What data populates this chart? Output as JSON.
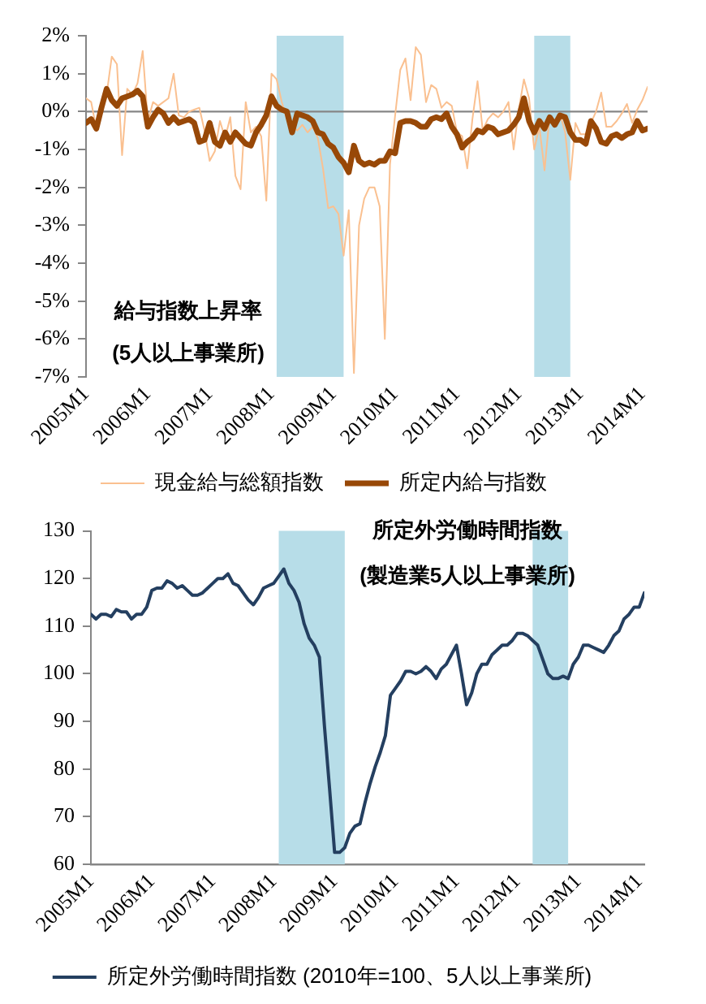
{
  "chart_data": [
    {
      "type": "line",
      "title": "給与指数上昇率",
      "subtitle": "(5人以上事業所)",
      "x": [
        "2005-01",
        "2005-02",
        "2005-03",
        "2005-04",
        "2005-05",
        "2005-06",
        "2005-07",
        "2005-08",
        "2005-09",
        "2005-10",
        "2005-11",
        "2005-12",
        "2006-01",
        "2006-02",
        "2006-03",
        "2006-04",
        "2006-05",
        "2006-06",
        "2006-07",
        "2006-08",
        "2006-09",
        "2006-10",
        "2006-11",
        "2006-12",
        "2007-01",
        "2007-02",
        "2007-03",
        "2007-04",
        "2007-05",
        "2007-06",
        "2007-07",
        "2007-08",
        "2007-09",
        "2007-10",
        "2007-11",
        "2007-12",
        "2008-01",
        "2008-02",
        "2008-03",
        "2008-04",
        "2008-05",
        "2008-06",
        "2008-07",
        "2008-08",
        "2008-09",
        "2008-10",
        "2008-11",
        "2008-12",
        "2009-01",
        "2009-02",
        "2009-03",
        "2009-04",
        "2009-05",
        "2009-06",
        "2009-07",
        "2009-08",
        "2009-09",
        "2009-10",
        "2009-11",
        "2009-12",
        "2010-01",
        "2010-02",
        "2010-03",
        "2010-04",
        "2010-05",
        "2010-06",
        "2010-07",
        "2010-08",
        "2010-09",
        "2010-10",
        "2010-11",
        "2010-12",
        "2011-01",
        "2011-02",
        "2011-03",
        "2011-04",
        "2011-05",
        "2011-06",
        "2011-07",
        "2011-08",
        "2011-09",
        "2011-10",
        "2011-11",
        "2011-12",
        "2012-01",
        "2012-02",
        "2012-03",
        "2012-04",
        "2012-05",
        "2012-06",
        "2012-07",
        "2012-08",
        "2012-09",
        "2012-10",
        "2012-11",
        "2012-12",
        "2013-01",
        "2013-02",
        "2013-03",
        "2013-04",
        "2013-05",
        "2013-06",
        "2013-07",
        "2013-08",
        "2013-09",
        "2013-10",
        "2013-11",
        "2013-12",
        "2014-01",
        "2014-02"
      ],
      "xlim": [
        "2005-01",
        "2014-02"
      ],
      "xticks": [
        {
          "value": "2005-01",
          "label": "2005M1"
        },
        {
          "value": "2006-01",
          "label": "2006M1"
        },
        {
          "value": "2007-01",
          "label": "2007M1"
        },
        {
          "value": "2008-01",
          "label": "2008M1"
        },
        {
          "value": "2009-01",
          "label": "2009M1"
        },
        {
          "value": "2010-01",
          "label": "2010M1"
        },
        {
          "value": "2011-01",
          "label": "2011M1"
        },
        {
          "value": "2012-01",
          "label": "2012M1"
        },
        {
          "value": "2013-01",
          "label": "2013M1"
        },
        {
          "value": "2014-01",
          "label": "2014M1"
        }
      ],
      "ylim": [
        -7,
        2
      ],
      "yticks": [
        {
          "value": 2,
          "label": "2%"
        },
        {
          "value": 1,
          "label": "1%"
        },
        {
          "value": 0,
          "label": "0%"
        },
        {
          "value": -1,
          "label": "-1%"
        },
        {
          "value": -2,
          "label": "-2%"
        },
        {
          "value": -3,
          "label": "-3%"
        },
        {
          "value": -4,
          "label": "-4%"
        },
        {
          "value": -5,
          "label": "-5%"
        },
        {
          "value": -6,
          "label": "-6%"
        },
        {
          "value": -7,
          "label": "-7%"
        }
      ],
      "series": [
        {
          "name": "現金給与総額指数",
          "color": "#fac090",
          "values": [
            0.35,
            0.25,
            -0.45,
            0,
            0.45,
            1.45,
            1.25,
            -1.15,
            0.6,
            0.45,
            0.75,
            1.6,
            -0.25,
            0.25,
            0.15,
            0.25,
            0.35,
            1,
            -0.1,
            -0.15,
            0,
            0.05,
            0.1,
            -0.5,
            -1.3,
            -1.05,
            -0.25,
            -0.7,
            -0.15,
            -1.7,
            -2.05,
            0.25,
            -0.55,
            -0.4,
            -0.65,
            -2.35,
            1,
            0.85,
            0.25,
            -0.2,
            -0.4,
            -0.5,
            -0.35,
            -0.55,
            -0.4,
            -0.7,
            -1.5,
            -2.55,
            -2.5,
            -2.7,
            -3.8,
            -2.6,
            -6.9,
            -3,
            -2.3,
            -2,
            -2,
            -2.5,
            -6,
            -1.4,
            -0.1,
            1.1,
            1.4,
            0.3,
            1.7,
            1.5,
            0.25,
            0.7,
            0.6,
            0.1,
            0.25,
            0.15,
            -0.55,
            -0.65,
            -1.5,
            -0.2,
            0.8,
            -0.5,
            -0.2,
            -0.05,
            -0.15,
            0,
            0.25,
            -1,
            0.05,
            0.85,
            0.35,
            -1,
            -0.4,
            -1.55,
            -0.1,
            -0.3,
            -0.05,
            -0.55,
            -1.8,
            -0.3,
            -0.6,
            -0.6,
            -0.3,
            0,
            0.5,
            -0.4,
            -0.4,
            -0.25,
            -0.05,
            0.2,
            -0.3,
            0.05,
            0.3,
            0.65
          ]
        },
        {
          "name": "所定内給与指数",
          "color": "#984807",
          "values": [
            -0.3,
            -0.2,
            -0.45,
            0.1,
            0.6,
            0.3,
            0.15,
            0.35,
            0.4,
            0.45,
            0.55,
            0.4,
            -0.4,
            -0.15,
            0.05,
            -0.05,
            -0.3,
            -0.15,
            -0.3,
            -0.25,
            -0.2,
            -0.3,
            -0.8,
            -0.75,
            -0.3,
            -0.8,
            -0.9,
            -0.55,
            -0.8,
            -0.55,
            -0.7,
            -0.85,
            -0.9,
            -0.55,
            -0.35,
            -0.1,
            0.4,
            0.15,
            0.05,
            0,
            -0.55,
            -0.05,
            -0.1,
            -0.15,
            -0.25,
            -0.55,
            -0.6,
            -0.85,
            -0.95,
            -1.2,
            -1.35,
            -1.6,
            -0.9,
            -1.3,
            -1.4,
            -1.35,
            -1.4,
            -1.3,
            -1.3,
            -1.05,
            -1.1,
            -0.3,
            -0.25,
            -0.25,
            -0.3,
            -0.4,
            -0.4,
            -0.2,
            -0.15,
            -0.2,
            -0.05,
            -0.4,
            -0.6,
            -0.95,
            -0.8,
            -0.7,
            -0.5,
            -0.55,
            -0.4,
            -0.45,
            -0.6,
            -0.55,
            -0.5,
            -0.35,
            -0.15,
            0.35,
            -0.25,
            -0.55,
            -0.25,
            -0.45,
            -0.15,
            -0.35,
            -0.1,
            -0.15,
            -0.55,
            -0.75,
            -0.75,
            -0.85,
            -0.25,
            -0.45,
            -0.8,
            -0.85,
            -0.65,
            -0.6,
            -0.7,
            -0.6,
            -0.55,
            -0.25,
            -0.5,
            -0.45
          ]
        }
      ],
      "bands": [
        {
          "axis": "x",
          "from": "2008-02",
          "to": "2009-03",
          "color": "#b7dde8"
        },
        {
          "axis": "x",
          "from": "2012-04",
          "to": "2012-11",
          "color": "#b7dde8"
        }
      ],
      "ref_lines": [
        {
          "axis": "y",
          "value": 0,
          "color": "#868686"
        }
      ],
      "grid": false,
      "marker": "none",
      "legend": "bottom"
    },
    {
      "type": "line",
      "title": "所定外労働時間指数",
      "subtitle": "(製造業5人以上事業所)",
      "x": [
        "2005-01",
        "2005-02",
        "2005-03",
        "2005-04",
        "2005-05",
        "2005-06",
        "2005-07",
        "2005-08",
        "2005-09",
        "2005-10",
        "2005-11",
        "2005-12",
        "2006-01",
        "2006-02",
        "2006-03",
        "2006-04",
        "2006-05",
        "2006-06",
        "2006-07",
        "2006-08",
        "2006-09",
        "2006-10",
        "2006-11",
        "2006-12",
        "2007-01",
        "2007-02",
        "2007-03",
        "2007-04",
        "2007-05",
        "2007-06",
        "2007-07",
        "2007-08",
        "2007-09",
        "2007-10",
        "2007-11",
        "2007-12",
        "2008-01",
        "2008-02",
        "2008-03",
        "2008-04",
        "2008-05",
        "2008-06",
        "2008-07",
        "2008-08",
        "2008-09",
        "2008-10",
        "2008-11",
        "2008-12",
        "2009-01",
        "2009-02",
        "2009-03",
        "2009-04",
        "2009-05",
        "2009-06",
        "2009-07",
        "2009-08",
        "2009-09",
        "2009-10",
        "2009-11",
        "2009-12",
        "2010-01",
        "2010-02",
        "2010-03",
        "2010-04",
        "2010-05",
        "2010-06",
        "2010-07",
        "2010-08",
        "2010-09",
        "2010-10",
        "2010-11",
        "2010-12",
        "2011-01",
        "2011-02",
        "2011-03",
        "2011-04",
        "2011-05",
        "2011-06",
        "2011-07",
        "2011-08",
        "2011-09",
        "2011-10",
        "2011-11",
        "2011-12",
        "2012-01",
        "2012-02",
        "2012-03",
        "2012-04",
        "2012-05",
        "2012-06",
        "2012-07",
        "2012-08",
        "2012-09",
        "2012-10",
        "2012-11",
        "2012-12",
        "2013-01",
        "2013-02",
        "2013-03",
        "2013-04",
        "2013-05",
        "2013-06",
        "2013-07",
        "2013-08",
        "2013-09",
        "2013-10",
        "2013-11",
        "2013-12",
        "2014-01",
        "2014-02"
      ],
      "xlim": [
        "2005-01",
        "2014-02"
      ],
      "xticks": [
        {
          "value": "2005-01",
          "label": "2005M1"
        },
        {
          "value": "2006-01",
          "label": "2006M1"
        },
        {
          "value": "2007-01",
          "label": "2007M1"
        },
        {
          "value": "2008-01",
          "label": "2008M1"
        },
        {
          "value": "2009-01",
          "label": "2009M1"
        },
        {
          "value": "2010-01",
          "label": "2010M1"
        },
        {
          "value": "2011-01",
          "label": "2011M1"
        },
        {
          "value": "2012-01",
          "label": "2012M1"
        },
        {
          "value": "2013-01",
          "label": "2013M1"
        },
        {
          "value": "2014-01",
          "label": "2014M1"
        }
      ],
      "ylim": [
        60,
        130
      ],
      "yticks": [
        130,
        120,
        110,
        100,
        90,
        80,
        70,
        60
      ],
      "series": [
        {
          "name": "所定外労働時間指数 (2010年=100、5人以上事業所)",
          "color": "#243f60",
          "values": [
            112.5,
            111.5,
            112.5,
            112.5,
            112,
            113.5,
            113,
            113,
            111.5,
            112.5,
            112.5,
            114,
            117.5,
            118,
            118,
            119.5,
            119,
            118,
            118.5,
            117.5,
            116.5,
            116.5,
            117,
            118,
            119,
            120,
            120,
            121,
            119,
            118.5,
            117,
            115.5,
            114.5,
            116,
            118,
            118.5,
            119,
            120.5,
            122,
            119,
            117.5,
            115,
            110.5,
            107.5,
            106,
            103.5,
            89,
            76,
            62.5,
            62.5,
            63.5,
            66.5,
            68,
            68.5,
            73,
            77,
            80.5,
            83.5,
            87,
            95.5,
            97,
            98.5,
            100.5,
            100.5,
            100,
            100.5,
            101.5,
            100.5,
            99,
            101,
            102,
            104,
            106,
            100,
            93.5,
            96,
            100,
            102,
            102,
            104,
            105,
            106,
            106,
            107,
            108.5,
            108.5,
            108,
            107,
            106,
            103,
            100,
            99,
            99,
            99.5,
            99,
            102,
            103.5,
            106,
            106,
            105.5,
            105,
            104.5,
            106,
            108,
            109,
            111.5,
            112.5,
            114,
            114,
            117
          ]
        }
      ],
      "bands": [
        {
          "axis": "x",
          "from": "2008-02",
          "to": "2009-03",
          "color": "#b7dde8"
        },
        {
          "axis": "x",
          "from": "2012-04",
          "to": "2012-11",
          "color": "#b7dde8"
        }
      ],
      "grid": false,
      "marker": "none",
      "legend": "bottom"
    }
  ]
}
